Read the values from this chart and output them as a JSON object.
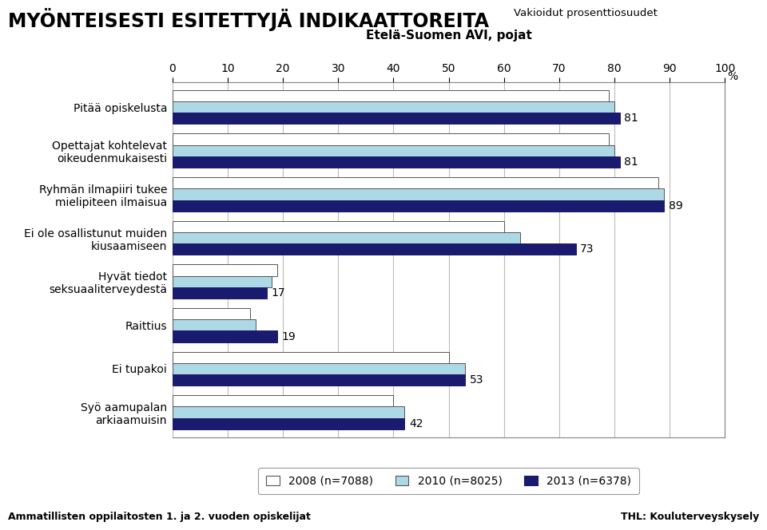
{
  "title": "MYÖNTEISESTI ESITETTYJÄ INDIKAATTOREITA",
  "subtitle": "Etelä-Suomen AVI, pojat",
  "top_right_label": "Vakioidut prosenttiosuudet",
  "categories": [
    "Pitää opiskelusta",
    "Opettajat kohtelevat\noikeudenmukaisesti",
    "Ryhmän ilmapiiri tukee\nmielipiteen ilmaisua",
    "Ei ole osallistunut muiden\nkiusaamiseen",
    "Hyvät tiedot\nseksuaaliterveydestä",
    "Raittius",
    "Ei tupakoi",
    "Syö aamupalan\narkiaamuisin"
  ],
  "series": {
    "2008 (n=7088)": {
      "values": [
        79,
        79,
        88,
        60,
        19,
        14,
        50,
        40
      ],
      "color": "#FFFFFF",
      "edgecolor": "#555555"
    },
    "2010 (n=8025)": {
      "values": [
        80,
        80,
        89,
        63,
        18,
        15,
        53,
        42
      ],
      "color": "#ADD8E6",
      "edgecolor": "#555555"
    },
    "2013 (n=6378)": {
      "values": [
        81,
        81,
        89,
        73,
        17,
        19,
        53,
        42
      ],
      "color": "#1A1A6E",
      "edgecolor": "#1A1A6E"
    }
  },
  "value_labels": [
    81,
    81,
    89,
    73,
    17,
    19,
    53,
    42
  ],
  "xlim": [
    0,
    100
  ],
  "xticks": [
    0,
    10,
    20,
    30,
    40,
    50,
    60,
    70,
    80,
    90,
    100
  ],
  "xlabel_unit": "%",
  "bar_height": 0.26,
  "footer_left": "Ammatillisten oppilaitosten 1. ja 2. vuoden opiskelijat",
  "footer_right": "THL: Kouluterveyskysely",
  "background_color": "#FFFFFF",
  "grid_color": "#BBBBBB",
  "title_fontsize": 17,
  "subtitle_fontsize": 11,
  "label_fontsize": 10,
  "tick_fontsize": 10,
  "legend_fontsize": 10,
  "value_label_fontsize": 10
}
